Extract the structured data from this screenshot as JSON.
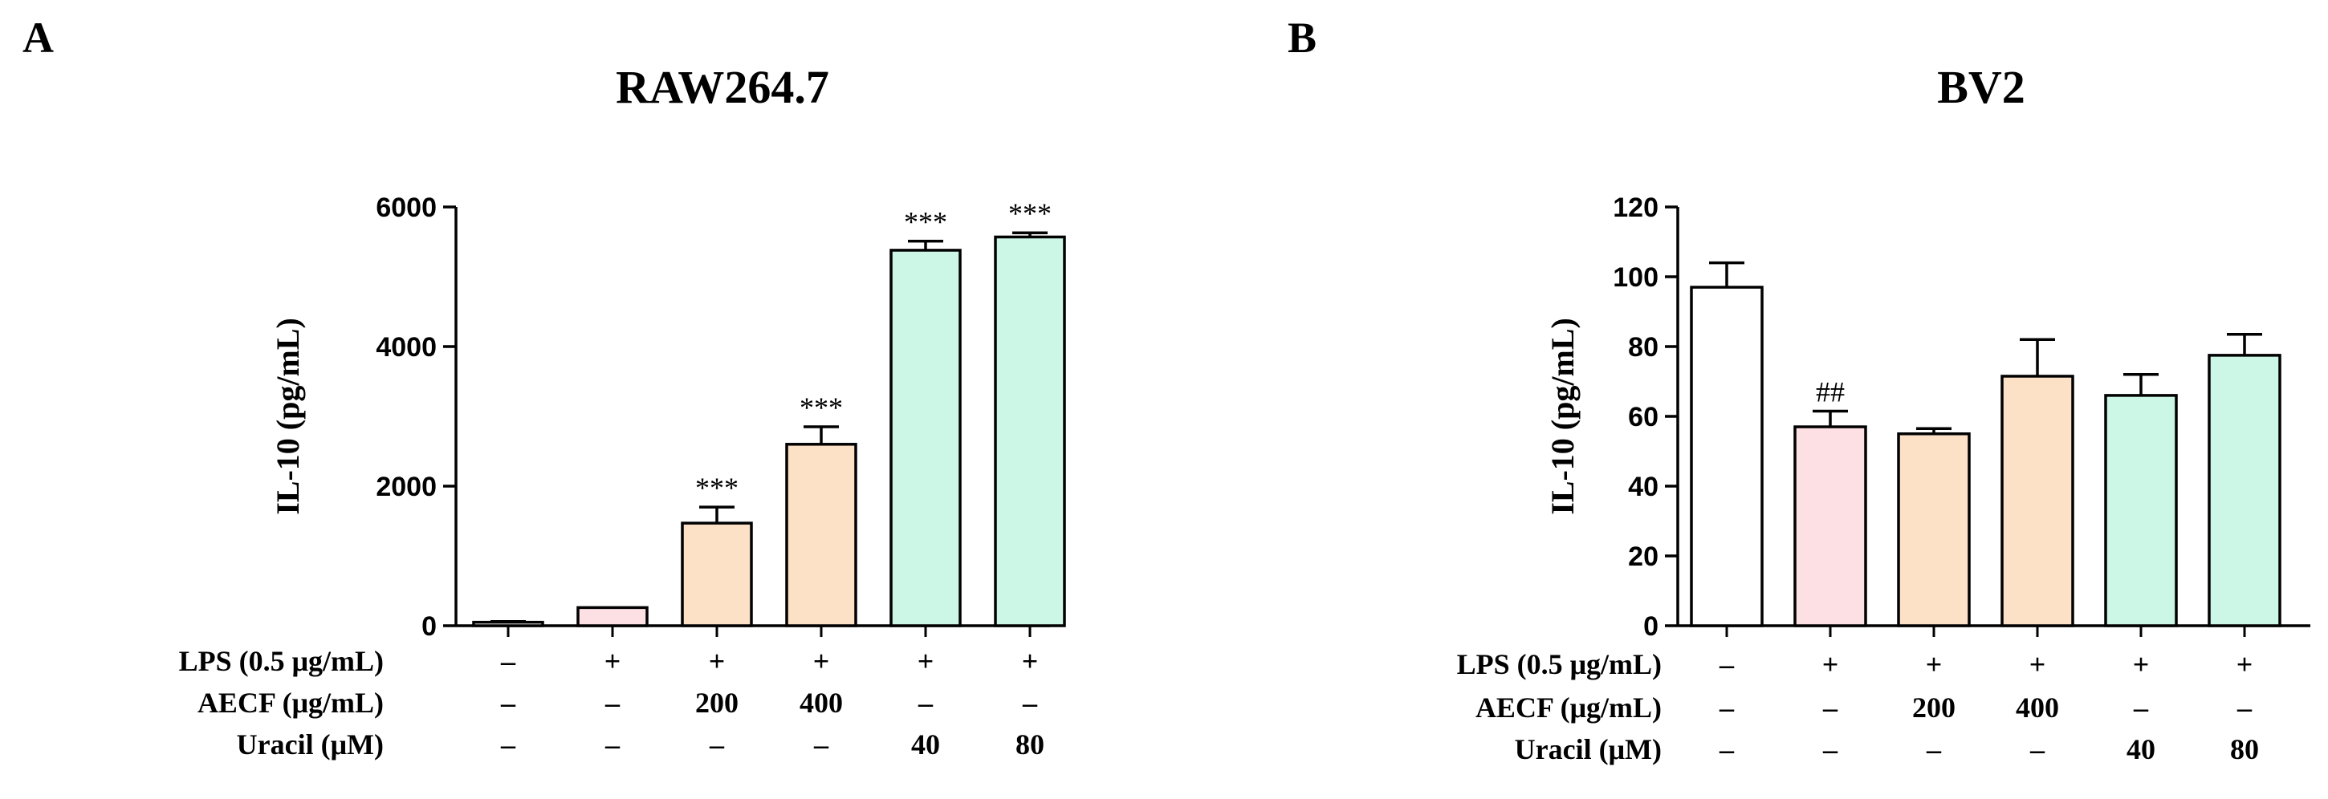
{
  "panels": [
    {
      "letter": "A"
    },
    {
      "letter": "B"
    }
  ],
  "chart_data": [
    {
      "type": "bar",
      "title": "RAW264.7",
      "xlabel": "",
      "ylabel": "IL-10 (pg/mL)",
      "ylim": [
        0,
        6000
      ],
      "yticks": [
        0,
        2000,
        4000,
        6000
      ],
      "ytick_labels": [
        "0",
        "2000",
        "4000",
        "6000"
      ],
      "values": [
        50,
        260,
        1470,
        2600,
        5380,
        5570
      ],
      "errors": [
        10,
        0,
        230,
        250,
        130,
        60
      ],
      "bar_colors": [
        "#ffffff",
        "#fde0e3",
        "#fde1c6",
        "#fde1c6",
        "#ccf6e6",
        "#ccf6e6"
      ],
      "significance": [
        "",
        "",
        "***",
        "***",
        "***",
        "***"
      ],
      "conditions": [
        {
          "label": "LPS (0.5 μg/mL)",
          "values": [
            "–",
            "+",
            "+",
            "+",
            "+",
            "+"
          ]
        },
        {
          "label": "AECF (μg/mL)",
          "values": [
            "–",
            "–",
            "200",
            "400",
            "–",
            "–"
          ]
        },
        {
          "label": "Uracil (μM)",
          "values": [
            "–",
            "–",
            "–",
            "–",
            "40",
            "80"
          ]
        }
      ]
    },
    {
      "type": "bar",
      "title": "BV2",
      "xlabel": "",
      "ylabel": "IL-10 (pg/mL)",
      "ylim": [
        0,
        120
      ],
      "yticks": [
        0,
        20,
        40,
        60,
        80,
        100,
        120
      ],
      "ytick_labels": [
        "0",
        "20",
        "40",
        "60",
        "80",
        "100",
        "120"
      ],
      "values": [
        97,
        57,
        55,
        71.5,
        66,
        77.5
      ],
      "errors": [
        7,
        4.5,
        1.5,
        10.5,
        6,
        6
      ],
      "bar_colors": [
        "#ffffff",
        "#fde0e3",
        "#fde1c6",
        "#fde1c6",
        "#ccf6e6",
        "#ccf6e6"
      ],
      "significance": [
        "",
        "##",
        "",
        "",
        "",
        ""
      ],
      "conditions": [
        {
          "label": "LPS (0.5 μg/mL)",
          "values": [
            "–",
            "+",
            "+",
            "+",
            "+",
            "+"
          ]
        },
        {
          "label": "AECF (μg/mL)",
          "values": [
            "–",
            "–",
            "200",
            "400",
            "–",
            "–"
          ]
        },
        {
          "label": "Uracil (μM)",
          "values": [
            "–",
            "–",
            "–",
            "–",
            "40",
            "80"
          ]
        }
      ]
    }
  ]
}
